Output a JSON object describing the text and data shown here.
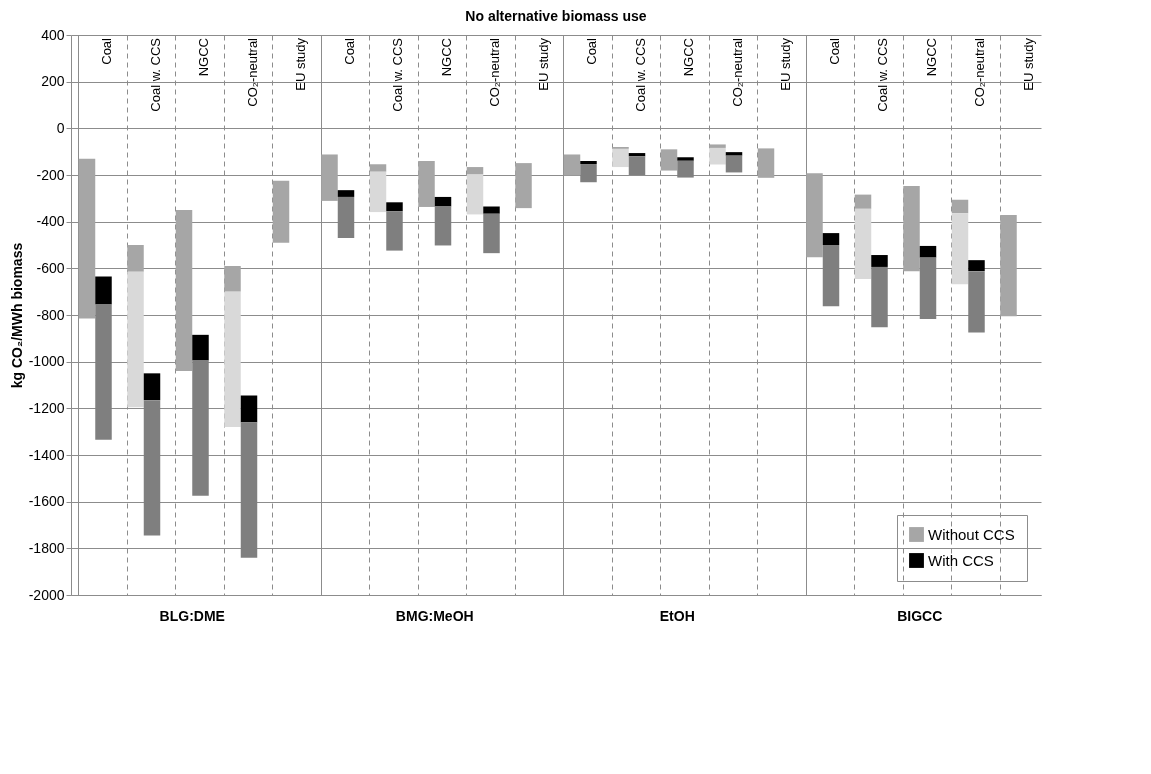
{
  "chart_data": {
    "type": "bar",
    "title": "No alternative biomass use",
    "ylabel": "kg CO₂/MWh biomass",
    "categories": [
      "Coal",
      "Coal w. CCS",
      "NGCC",
      "CO₂-neutral",
      "EU study",
      "Coal",
      "Coal w. CCS",
      "NGCC",
      "CO₂-neutral",
      "EU study",
      "Coal",
      "Coal w. CCS",
      "NGCC",
      "CO₂-neutral",
      "EU study",
      "Coal",
      "Coal w. CCS",
      "NGCC",
      "CO₂-neutral",
      "EU study"
    ],
    "annotations": [
      "BLG:DME",
      "BMG:MeOH",
      "EtOH",
      "BIGCC"
    ],
    "series": [
      {
        "name": "Without CCS",
        "color": "#a6a6a6",
        "base": [
          -130,
          -500,
          -350,
          -590,
          -225,
          -112,
          -154,
          -140,
          -166,
          -149,
          -112,
          -80,
          -90,
          -69,
          -86,
          -193,
          -284,
          -247,
          -306,
          -371
        ],
        "values": [
          -685,
          -115,
          -690,
          -110,
          -265,
          -199,
          -32,
          -197,
          -32,
          -193,
          -90,
          -8,
          -91,
          -15,
          -126,
          -359,
          -61,
          -365,
          -58,
          -434
        ]
      },
      {
        "color": "#d9d9d9",
        "base": [
          null,
          -615,
          null,
          -700,
          null,
          null,
          -186,
          null,
          -198,
          null,
          null,
          -88,
          null,
          -84,
          null,
          null,
          -345,
          null,
          -364,
          null
        ],
        "values": [
          null,
          -580,
          null,
          -580,
          null,
          null,
          -173,
          null,
          -171,
          null,
          null,
          -78,
          null,
          -71,
          null,
          null,
          -301,
          null,
          -304,
          null
        ]
      },
      {
        "name": "With CCS",
        "color": "#000000",
        "base": [
          -635,
          -1050,
          -885,
          -1145,
          null,
          -265,
          -317,
          -294,
          -335,
          null,
          -140,
          -106,
          -124,
          -102,
          null,
          -449,
          -543,
          -504,
          -565,
          null
        ],
        "values": [
          -120,
          -115,
          -110,
          -115,
          null,
          -29,
          -38,
          -41,
          -31,
          null,
          -13,
          -14,
          -15,
          -15,
          null,
          -51,
          -51,
          -50,
          -47,
          null
        ]
      },
      {
        "color": "#7f7f7f",
        "base": [
          -755,
          -1165,
          -995,
          -1260,
          null,
          -294,
          -355,
          -335,
          -366,
          null,
          -153,
          -120,
          -139,
          -117,
          null,
          -500,
          -594,
          -554,
          -612,
          null
        ],
        "values": [
          -580,
          -580,
          -580,
          -580,
          null,
          -176,
          -169,
          -167,
          -169,
          null,
          -78,
          -80,
          -72,
          -72,
          null,
          -263,
          -259,
          -263,
          -263,
          null
        ]
      }
    ],
    "ylim": [
      -2000,
      400
    ],
    "yticks": [
      -2000,
      -1800,
      -1600,
      -1400,
      -1200,
      -1000,
      -800,
      -600,
      -400,
      -200,
      0,
      200,
      400
    ],
    "grid": true,
    "legend": "bottom right"
  }
}
